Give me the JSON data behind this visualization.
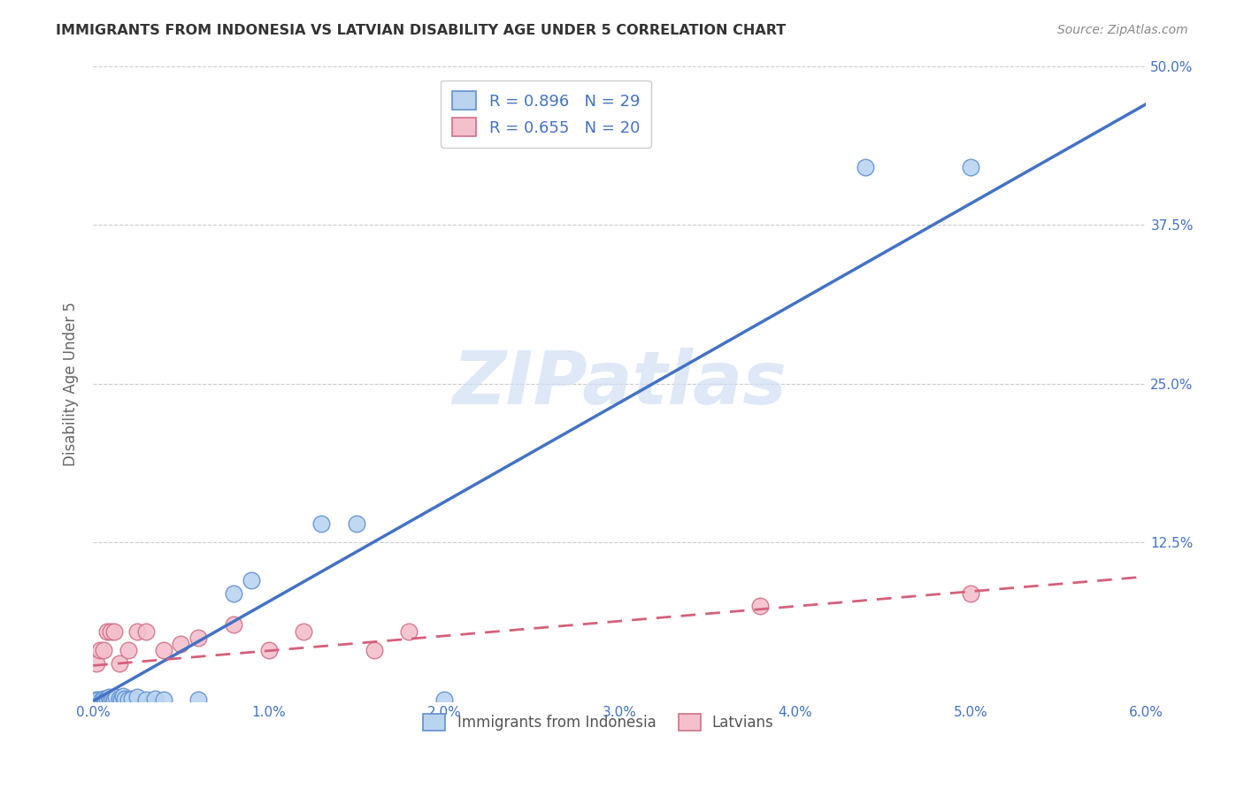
{
  "title": "IMMIGRANTS FROM INDONESIA VS LATVIAN DISABILITY AGE UNDER 5 CORRELATION CHART",
  "source": "Source: ZipAtlas.com",
  "ylabel": "Disability Age Under 5",
  "xlim": [
    0,
    0.06
  ],
  "ylim": [
    0,
    0.5
  ],
  "xticks": [
    0.0,
    0.01,
    0.02,
    0.03,
    0.04,
    0.05,
    0.06
  ],
  "yticks": [
    0.0,
    0.125,
    0.25,
    0.375,
    0.5
  ],
  "xticklabels": [
    "0.0%",
    "1.0%",
    "2.0%",
    "3.0%",
    "4.0%",
    "5.0%",
    "6.0%"
  ],
  "yticklabels_right": [
    "",
    "12.5%",
    "25.0%",
    "37.5%",
    "50.0%"
  ],
  "legend_top_labels": [
    "R = 0.896   N = 29",
    "R = 0.655   N = 20"
  ],
  "legend_bottom": [
    "Immigrants from Indonesia",
    "Latvians"
  ],
  "blue_scatter_x": [
    0.0002,
    0.0003,
    0.0005,
    0.0006,
    0.0007,
    0.0008,
    0.0009,
    0.001,
    0.0011,
    0.0012,
    0.0013,
    0.0015,
    0.0016,
    0.0017,
    0.0018,
    0.002,
    0.0022,
    0.0025,
    0.003,
    0.0035,
    0.004,
    0.006,
    0.008,
    0.009,
    0.013,
    0.015,
    0.02,
    0.044,
    0.05
  ],
  "blue_scatter_y": [
    0.001,
    0.001,
    0.001,
    0.002,
    0.001,
    0.002,
    0.003,
    0.001,
    0.002,
    0.001,
    0.003,
    0.002,
    0.001,
    0.004,
    0.002,
    0.001,
    0.002,
    0.003,
    0.001,
    0.002,
    0.001,
    0.001,
    0.085,
    0.095,
    0.14,
    0.14,
    0.001,
    0.42,
    0.42
  ],
  "pink_scatter_x": [
    0.0002,
    0.0004,
    0.0006,
    0.0008,
    0.001,
    0.0012,
    0.0015,
    0.002,
    0.0025,
    0.003,
    0.004,
    0.005,
    0.006,
    0.008,
    0.01,
    0.012,
    0.016,
    0.018,
    0.038,
    0.05
  ],
  "pink_scatter_y": [
    0.03,
    0.04,
    0.04,
    0.055,
    0.055,
    0.055,
    0.03,
    0.04,
    0.055,
    0.055,
    0.04,
    0.045,
    0.05,
    0.06,
    0.04,
    0.055,
    0.04,
    0.055,
    0.075,
    0.085
  ],
  "blue_line_x": [
    0.0,
    0.06
  ],
  "blue_line_y": [
    0.0,
    0.47
  ],
  "pink_line_x": [
    0.0,
    0.06
  ],
  "pink_line_y": [
    0.028,
    0.098
  ],
  "blue_color": "#4472c4",
  "pink_color": "#d4607a",
  "scatter_blue_fill": "#bad4f0",
  "scatter_blue_edge": "#6090d0",
  "scatter_pink_fill": "#f4c0cc",
  "scatter_pink_edge": "#d07088",
  "watermark_color": "#d0dff5",
  "background_color": "#ffffff",
  "grid_color": "#cccccc",
  "tick_color": "#4472c4",
  "ylabel_color": "#666666",
  "title_color": "#333333"
}
